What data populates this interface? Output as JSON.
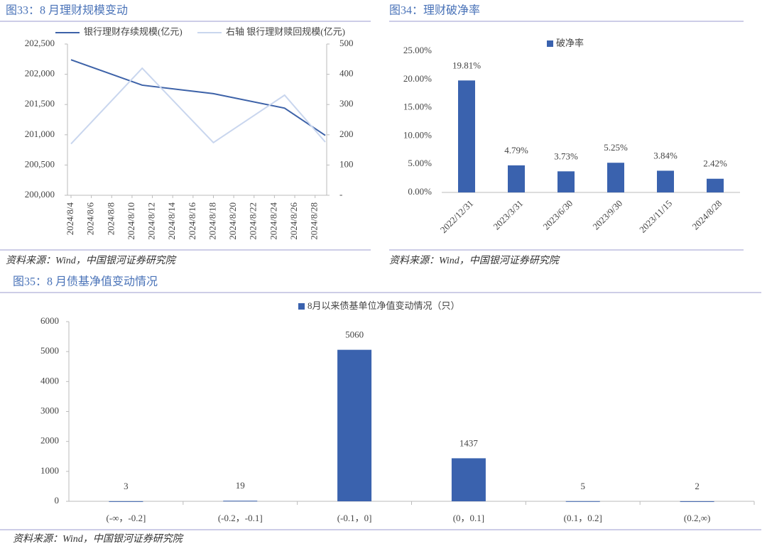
{
  "chart_data": [
    {
      "type": "line",
      "title": "图33：8 月理财规模变动",
      "source": "资料来源：Wind，中国银河证券研究院",
      "x": [
        "2024/8/4",
        "2024/8/11",
        "2024/8/18",
        "2024/8/25",
        "2024/8/29"
      ],
      "xlim": [
        "2024/8/4",
        "2024/8/29"
      ],
      "xticks": [
        "2024/8/4",
        "2024/8/6",
        "2024/8/8",
        "2024/8/10",
        "2024/8/12",
        "2024/8/14",
        "2024/8/16",
        "2024/8/18",
        "2024/8/20",
        "2024/8/22",
        "2024/8/24",
        "2024/8/26",
        "2024/8/28"
      ],
      "ylim": [
        200000,
        202500
      ],
      "yticks": [
        {
          "value": 200000,
          "label": "200,000"
        },
        {
          "value": 200500,
          "label": "200,500"
        },
        {
          "value": 201000,
          "label": "201,000"
        },
        {
          "value": 201500,
          "label": "201,500"
        },
        {
          "value": 202000,
          "label": "202,000"
        },
        {
          "value": 202500,
          "label": "202,500"
        }
      ],
      "y2lim": [
        0,
        500
      ],
      "y2ticks": [
        {
          "value": 0,
          "label": "-"
        },
        100,
        200,
        300,
        400,
        500
      ],
      "series": [
        {
          "name": "银行理财存续规模(亿元)",
          "color": "#3d62a8",
          "values": [
            202240,
            201820,
            201680,
            201440,
            200990
          ]
        },
        {
          "name": "右轴 银行理财赎回规模(亿元)",
          "color": "#c9d6ee",
          "axis": "y2",
          "values": [
            170,
            420,
            174,
            331,
            176
          ]
        }
      ]
    },
    {
      "type": "bar",
      "title": "图34：理财破净率",
      "source": "资料来源：Wind，中国银河证券研究院",
      "categories": [
        "2022/12/31",
        "2023/3/31",
        "2023/6/30",
        "2023/9/30",
        "2023/11/15",
        "2024/8/28"
      ],
      "series": [
        {
          "name": "破净率",
          "color": "#3a62ae",
          "values": [
            19.81,
            4.79,
            3.73,
            5.25,
            3.84,
            2.42
          ],
          "value_labels": [
            "19.81%",
            "4.79%",
            "3.73%",
            "5.25%",
            "3.84%",
            "2.42%"
          ]
        }
      ],
      "ylim": [
        0,
        25
      ],
      "yticks": [
        {
          "value": 0,
          "label": "0.00%"
        },
        {
          "value": 5,
          "label": "5.00%"
        },
        {
          "value": 10,
          "label": "10.00%"
        },
        {
          "value": 15,
          "label": "15.00%"
        },
        {
          "value": 20,
          "label": "20.00%"
        },
        {
          "value": 25,
          "label": "25.00%"
        }
      ]
    },
    {
      "type": "bar",
      "title": "图35：8 月债基净值变动情况",
      "source": "资料来源：Wind，中国银河证券研究院",
      "categories": [
        "(-∞，-0.2]",
        "(-0.2，-0.1]",
        "(-0.1，0]",
        "(0，0.1]",
        "(0.1，0.2]",
        "(0.2,∞)"
      ],
      "series": [
        {
          "name": "8月以来债基单位净值变动情况（只）",
          "color": "#3a62ae",
          "values": [
            3,
            19,
            5060,
            1437,
            5,
            2
          ]
        }
      ],
      "ylim": [
        0,
        6000
      ],
      "yticks": [
        0,
        1000,
        2000,
        3000,
        4000,
        5000,
        6000
      ]
    }
  ]
}
